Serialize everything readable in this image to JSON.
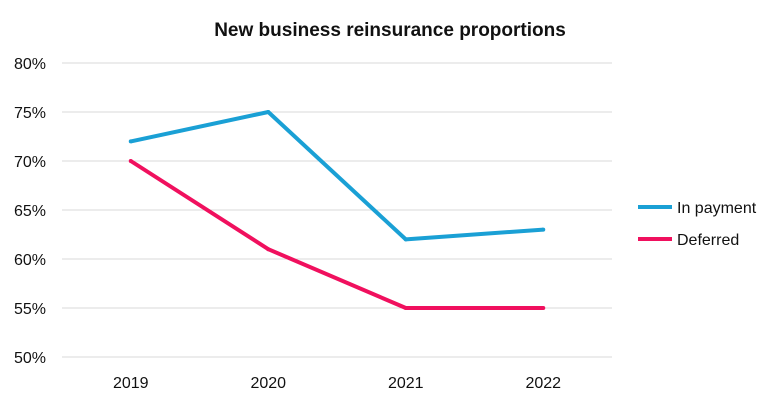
{
  "chart_data": {
    "type": "line",
    "title": "New business reinsurance proportions",
    "xlabel": "",
    "ylabel": "",
    "categories": [
      "2019",
      "2020",
      "2021",
      "2022"
    ],
    "ylim": [
      0.5,
      0.8
    ],
    "yticks": [
      0.5,
      0.55,
      0.6,
      0.65,
      0.7,
      0.75,
      0.8
    ],
    "ytick_labels": [
      "50%",
      "55%",
      "60%",
      "65%",
      "70%",
      "75%",
      "80%"
    ],
    "grid": true,
    "legend_position": "right",
    "series": [
      {
        "name": "In payment",
        "color": "#1aa0d5",
        "values": [
          0.72,
          0.75,
          0.62,
          0.63
        ]
      },
      {
        "name": "Deferred",
        "color": "#f0105e",
        "values": [
          0.7,
          0.61,
          0.55,
          0.55
        ]
      }
    ]
  }
}
